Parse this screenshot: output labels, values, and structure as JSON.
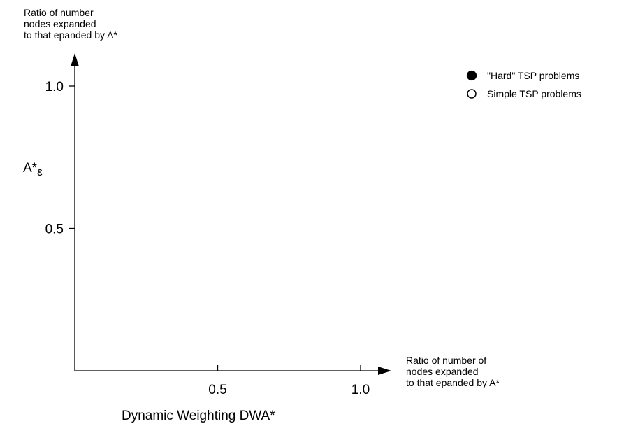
{
  "chart_data": {
    "type": "scatter",
    "y_axis_title_lines": [
      "Ratio of number",
      "nodes expanded",
      "to that epanded by A*"
    ],
    "x_axis_title_lines": [
      "Ratio of number of",
      "nodes expanded",
      "to that epanded by A*"
    ],
    "y_axis_label": "A*",
    "y_axis_label_subscript": "ε",
    "x_axis_label": "Dynamic Weighting DWA*",
    "x_ticks": [
      0.5,
      1.0
    ],
    "x_tick_labels": [
      "0.5",
      "1.0"
    ],
    "y_ticks": [
      0.5,
      1.0
    ],
    "y_tick_labels": [
      "0.5",
      "1.0"
    ],
    "xlim": [
      0,
      1.0
    ],
    "ylim": [
      0,
      1.0
    ],
    "grid": false,
    "legend_position": "top-right",
    "series": [
      {
        "name": "\"Hard\" TSP problems",
        "marker": "filled-circle",
        "color": "#000000",
        "points": []
      },
      {
        "name": "Simple TSP problems",
        "marker": "open-circle",
        "color": "#000000",
        "points": []
      }
    ]
  }
}
